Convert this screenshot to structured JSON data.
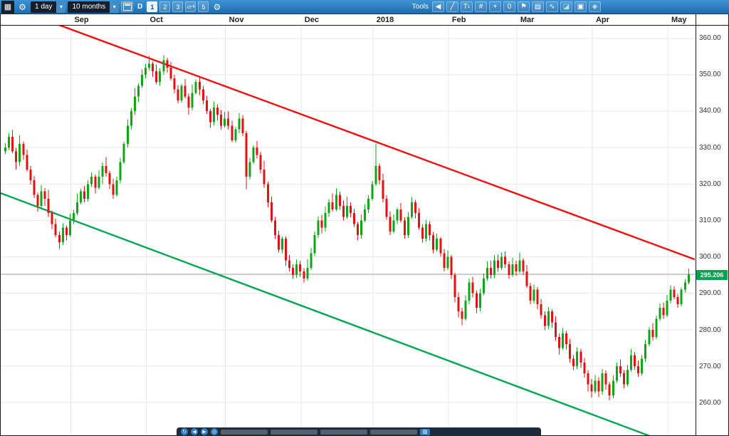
{
  "toolbar": {
    "period_value": "1 day",
    "range_value": "10 months",
    "series_type_label": "D",
    "layout_buttons": [
      "1",
      "2",
      "3"
    ],
    "active_layout": "1",
    "layout4_sup": "4",
    "compare_button": "5",
    "tools_label": "Tools"
  },
  "icons": {
    "menu_grid": "▦",
    "settings_gear": "⚙",
    "dropdown_arrow": "▾",
    "collapse_arrow": "◀",
    "trendline_tool": "╱",
    "text_tool_main": "T",
    "text_tool_sub": "1",
    "grid_tool": "#",
    "crosshair_tool": "+",
    "zero_marker_tool": "0",
    "flag_tool": "⚑",
    "panel_tool": "▤",
    "wave_tool": "∿",
    "eraser_tool": "◪",
    "printer_tool": "▣",
    "paint_tool": "◈",
    "refresh_small": "↻",
    "prev_small": "◀",
    "next_small": "▶",
    "target_small": "◎",
    "palette_small": "▨"
  },
  "chart_data": {
    "type": "candlestick",
    "title": "",
    "x_axis_labels": [
      "Sep",
      "Oct",
      "Nov",
      "Dec",
      "2018",
      "Feb",
      "Mar",
      "Apr",
      "May"
    ],
    "month_start_indices": [
      19,
      40,
      62,
      83,
      103,
      124,
      143,
      164,
      185
    ],
    "y_ticks": [
      360,
      350,
      340,
      330,
      320,
      310,
      300,
      290,
      280,
      270,
      260
    ],
    "y_tick_labels": [
      "360.00",
      "350.00",
      "340.00",
      "330.00",
      "320.00",
      "310.00",
      "300.00",
      "290.00",
      "280.00",
      "270.00",
      "260.00"
    ],
    "ylim": [
      251,
      363.5
    ],
    "grid": true,
    "last_price": 295.206,
    "last_price_label": "295.206",
    "colors": {
      "up": "#0ca616",
      "down": "#e21212",
      "grid": "#e9e9e9",
      "last_price_line": "#9b9b9b",
      "badge_bg": "#00a44e",
      "trend_red": "#ee1111",
      "trend_green": "#00a651"
    },
    "trendlines": [
      {
        "name": "resistance-trendline",
        "color": "#ee1111",
        "width": 2.4,
        "from": {
          "index": 2,
          "price": 368.5
        },
        "to": {
          "index": 192,
          "price": 299.3
        }
      },
      {
        "name": "support-trendline",
        "color": "#00a651",
        "width": 2.4,
        "from": {
          "index": -1,
          "price": 317.5
        },
        "to": {
          "index": 183,
          "price": 249.5
        }
      }
    ],
    "candles": [
      [
        329,
        331.2,
        328.2,
        330
      ],
      [
        330,
        334,
        329.4,
        333
      ],
      [
        333,
        334.8,
        328.5,
        329
      ],
      [
        329,
        329.9,
        324,
        326
      ],
      [
        326,
        333.4,
        325,
        331
      ],
      [
        331,
        331.7,
        326.6,
        328
      ],
      [
        328,
        329.5,
        323.4,
        324
      ],
      [
        324,
        325,
        319.9,
        321
      ],
      [
        321,
        322.2,
        316.2,
        317
      ],
      [
        317,
        317.6,
        312.4,
        314
      ],
      [
        314,
        319.8,
        313.5,
        318
      ],
      [
        318,
        318.9,
        314,
        316
      ],
      [
        316,
        318.4,
        311,
        312
      ],
      [
        312,
        312.7,
        307.6,
        309
      ],
      [
        309,
        310.5,
        305.4,
        306
      ],
      [
        306,
        307,
        302.2,
        304
      ],
      [
        304,
        309.2,
        303.2,
        308
      ],
      [
        308,
        308.6,
        304.5,
        306
      ],
      [
        306,
        311.8,
        305.5,
        310
      ],
      [
        310,
        312.9,
        309,
        312
      ],
      [
        312,
        317.4,
        311.5,
        315
      ],
      [
        315,
        318.7,
        314.4,
        318
      ],
      [
        318,
        319.5,
        315,
        316
      ],
      [
        316,
        321,
        315.2,
        320
      ],
      [
        320,
        323.2,
        319.2,
        322
      ],
      [
        322,
        322.6,
        317.4,
        319
      ],
      [
        319,
        323.8,
        318.5,
        322
      ],
      [
        322,
        325.9,
        320,
        325
      ],
      [
        325,
        327.4,
        322,
        323
      ],
      [
        323,
        323.7,
        318.6,
        320
      ],
      [
        320,
        321.5,
        316,
        317
      ],
      [
        317,
        322,
        316.5,
        321
      ],
      [
        321,
        327.2,
        320.2,
        326
      ],
      [
        326,
        331.6,
        325.5,
        331
      ],
      [
        331,
        337.8,
        330,
        336
      ],
      [
        336,
        340.9,
        335,
        340
      ],
      [
        340,
        346.4,
        339,
        344
      ],
      [
        344,
        347.7,
        342.6,
        347
      ],
      [
        347,
        351.5,
        346.4,
        350
      ],
      [
        350,
        353,
        349,
        352
      ],
      [
        352,
        355.2,
        351.2,
        353
      ],
      [
        353,
        353.6,
        349.4,
        351
      ],
      [
        351,
        352.8,
        347.5,
        348
      ],
      [
        348,
        351.9,
        347,
        351
      ],
      [
        351,
        355.4,
        350,
        354
      ],
      [
        354,
        354.7,
        350.6,
        352
      ],
      [
        352,
        353.5,
        348.4,
        349
      ],
      [
        349,
        350,
        344.9,
        346
      ],
      [
        346,
        347.2,
        342.2,
        343
      ],
      [
        343,
        347.6,
        342.4,
        347
      ],
      [
        347,
        348.8,
        343.5,
        344
      ],
      [
        344,
        344.9,
        339,
        341
      ],
      [
        341,
        347.4,
        340.2,
        345
      ],
      [
        345,
        348.7,
        344.6,
        348
      ],
      [
        348,
        349.5,
        344.4,
        346
      ],
      [
        346,
        347,
        341.9,
        343
      ],
      [
        343,
        344.2,
        339.2,
        340
      ],
      [
        340,
        340.6,
        335.4,
        337
      ],
      [
        337,
        342.7,
        336,
        341
      ],
      [
        341,
        341.9,
        337.5,
        339
      ],
      [
        339,
        340.4,
        335,
        336
      ],
      [
        336,
        339.8,
        335.5,
        338
      ],
      [
        338,
        339.9,
        335,
        336
      ],
      [
        336,
        337.4,
        331.5,
        332
      ],
      [
        332,
        335.7,
        331.4,
        335
      ],
      [
        335,
        339.5,
        334,
        338
      ],
      [
        338,
        338.9,
        333.2,
        334
      ],
      [
        334,
        334.6,
        318.6,
        322
      ],
      [
        322,
        327.2,
        321.2,
        326
      ],
      [
        326,
        330.6,
        325.5,
        330
      ],
      [
        330,
        331.8,
        327,
        328
      ],
      [
        328,
        328.9,
        322.9,
        324
      ],
      [
        324,
        326.4,
        319,
        320
      ],
      [
        320,
        320.7,
        313.6,
        315
      ],
      [
        315,
        316.5,
        309.4,
        310
      ],
      [
        310,
        311,
        304.9,
        306
      ],
      [
        306,
        307.2,
        301.2,
        302
      ],
      [
        302,
        305.6,
        301,
        305
      ],
      [
        305,
        305.7,
        297.6,
        299
      ],
      [
        299,
        300.5,
        296,
        297
      ],
      [
        297,
        298,
        293.9,
        295
      ],
      [
        295,
        299.2,
        294.2,
        298
      ],
      [
        298,
        298.8,
        294.5,
        296
      ],
      [
        296,
        296.9,
        293,
        294
      ],
      [
        294,
        299.4,
        293.5,
        297
      ],
      [
        297,
        302.5,
        296.4,
        301
      ],
      [
        301,
        307,
        300.2,
        306
      ],
      [
        306,
        311.2,
        305.2,
        310
      ],
      [
        310,
        311.6,
        306.5,
        308
      ],
      [
        308,
        313.8,
        307,
        312
      ],
      [
        312,
        315.9,
        311,
        315
      ],
      [
        315,
        317.4,
        312.4,
        313
      ],
      [
        313,
        318.8,
        312.5,
        317
      ],
      [
        317,
        317.9,
        312.9,
        314
      ],
      [
        314,
        315.5,
        310,
        311
      ],
      [
        311,
        316.5,
        310.4,
        314
      ],
      [
        314,
        315,
        310.9,
        312
      ],
      [
        312,
        313.2,
        308.2,
        309
      ],
      [
        309,
        309.6,
        304.5,
        306
      ],
      [
        306,
        311.7,
        305,
        310
      ],
      [
        310,
        314.5,
        309.6,
        313
      ],
      [
        313,
        316.9,
        312,
        316
      ],
      [
        316,
        320.8,
        315.5,
        320
      ],
      [
        320,
        331,
        319.5,
        325
      ],
      [
        325,
        325.6,
        320,
        321
      ],
      [
        321,
        322.8,
        315,
        316
      ],
      [
        316,
        316.9,
        310.2,
        311
      ],
      [
        311,
        312.4,
        306,
        307
      ],
      [
        307,
        311.7,
        306.5,
        310
      ],
      [
        310,
        313.5,
        309,
        313
      ],
      [
        313,
        314.8,
        309.4,
        310
      ],
      [
        310,
        310.9,
        305,
        306
      ],
      [
        306,
        312.2,
        305.2,
        311
      ],
      [
        311,
        316.4,
        310.5,
        315
      ],
      [
        315,
        315.7,
        310.6,
        312
      ],
      [
        312,
        313.5,
        307.4,
        308
      ],
      [
        308,
        309,
        303.9,
        305
      ],
      [
        305,
        310.2,
        304.2,
        309
      ],
      [
        309,
        309.8,
        304.5,
        306
      ],
      [
        306,
        306.9,
        301,
        302
      ],
      [
        302,
        306.4,
        301.5,
        305
      ],
      [
        305,
        305.5,
        300,
        301
      ],
      [
        301,
        302.2,
        296,
        297
      ],
      [
        297,
        301.8,
        296.4,
        300
      ],
      [
        300,
        300.5,
        293.9,
        295
      ],
      [
        295,
        295.6,
        287.5,
        289
      ],
      [
        289,
        290.2,
        283.4,
        285
      ],
      [
        285,
        286,
        281.2,
        283
      ],
      [
        283,
        289.4,
        282.5,
        288
      ],
      [
        288,
        294,
        287,
        293
      ],
      [
        293,
        294.5,
        288.9,
        290
      ],
      [
        290,
        290.8,
        284.6,
        286
      ],
      [
        286,
        291.2,
        285,
        290
      ],
      [
        290,
        295.4,
        289.4,
        294
      ],
      [
        294,
        298.7,
        293.5,
        297
      ],
      [
        297,
        298.9,
        294,
        295
      ],
      [
        295,
        300.5,
        294.2,
        299
      ],
      [
        299,
        300.6,
        295.9,
        297
      ],
      [
        297,
        301.2,
        296.4,
        300
      ],
      [
        300,
        301.5,
        297,
        298
      ],
      [
        298,
        298.7,
        293.9,
        295
      ],
      [
        295,
        299.8,
        294.5,
        298
      ],
      [
        298,
        298.9,
        294.8,
        296
      ],
      [
        296,
        301.2,
        295.5,
        299
      ],
      [
        299,
        299.6,
        295,
        296
      ],
      [
        296,
        297.8,
        291.4,
        292
      ],
      [
        292,
        292.9,
        287,
        288
      ],
      [
        288,
        292.4,
        287.2,
        291
      ],
      [
        291,
        291.7,
        285.6,
        287
      ],
      [
        287,
        288.5,
        283,
        284
      ],
      [
        284,
        285,
        279.9,
        281
      ],
      [
        281,
        286.2,
        280.2,
        285
      ],
      [
        285,
        285.6,
        280.5,
        282
      ],
      [
        282,
        283.8,
        277,
        278
      ],
      [
        278,
        278.9,
        273.2,
        275
      ],
      [
        275,
        280.4,
        274.5,
        279
      ],
      [
        279,
        279.7,
        274.6,
        276
      ],
      [
        276,
        277.5,
        271,
        272
      ],
      [
        272,
        273,
        268.9,
        270
      ],
      [
        270,
        275.2,
        269.2,
        274
      ],
      [
        274,
        274.8,
        269.5,
        271
      ],
      [
        271,
        272.2,
        266.8,
        268
      ],
      [
        268,
        268.9,
        263,
        265
      ],
      [
        265,
        266.5,
        261.4,
        263
      ],
      [
        263,
        267.5,
        262.4,
        266
      ],
      [
        266,
        266.9,
        261.5,
        263
      ],
      [
        263,
        269.2,
        262.2,
        268
      ],
      [
        268,
        268.8,
        263.5,
        265
      ],
      [
        265,
        265.7,
        260.6,
        262
      ],
      [
        262,
        267.4,
        261.2,
        266
      ],
      [
        266,
        271,
        265.4,
        270
      ],
      [
        270,
        271.8,
        267,
        268
      ],
      [
        268,
        268.9,
        263.9,
        265
      ],
      [
        265,
        270.4,
        264.5,
        269
      ],
      [
        269,
        274.7,
        268.5,
        273
      ],
      [
        273,
        273.9,
        269,
        270
      ],
      [
        270,
        271.5,
        267,
        268
      ],
      [
        268,
        273,
        267.4,
        272
      ],
      [
        272,
        277.2,
        271.2,
        276
      ],
      [
        276,
        280.6,
        275.5,
        280
      ],
      [
        280,
        281.8,
        277,
        278
      ],
      [
        278,
        283.9,
        277.4,
        283
      ],
      [
        283,
        287.2,
        282.4,
        286
      ],
      [
        286,
        287.4,
        283,
        284
      ],
      [
        284,
        289.5,
        283.5,
        288
      ],
      [
        288,
        292.2,
        287.2,
        291
      ],
      [
        291,
        291.9,
        288.4,
        289
      ],
      [
        289,
        289.8,
        286,
        287
      ],
      [
        287,
        291.6,
        286.4,
        291
      ],
      [
        291,
        293.8,
        290.2,
        293
      ],
      [
        293,
        296.8,
        292.5,
        295.206
      ]
    ]
  }
}
